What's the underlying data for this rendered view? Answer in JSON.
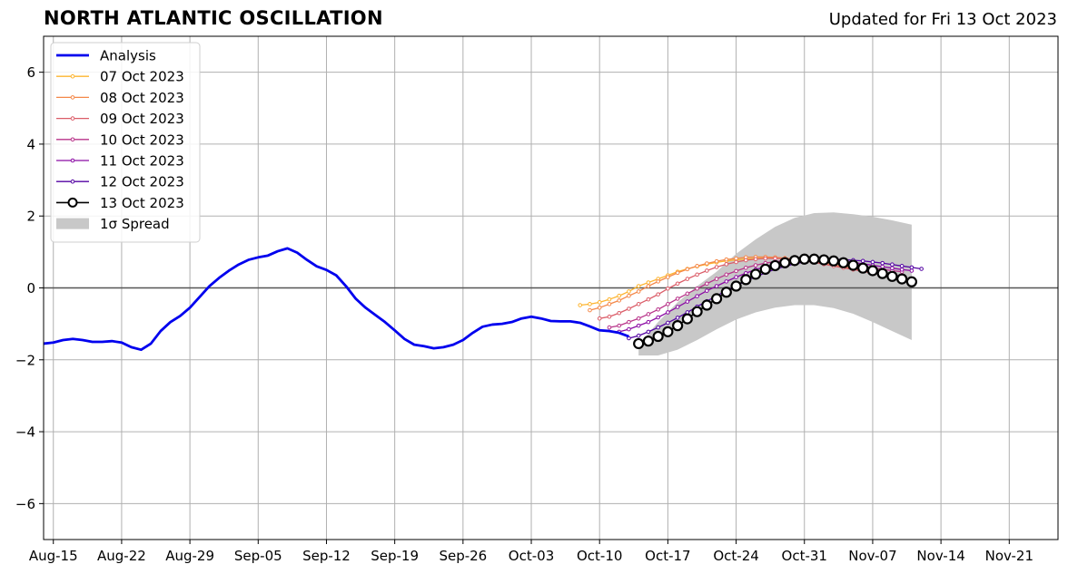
{
  "chart_data": {
    "type": "line",
    "title": "NORTH ATLANTIC OSCILLATION",
    "subtitle": "Updated for Fri 13 Oct 2023",
    "xlabel": "",
    "ylabel": "",
    "x_axis": {
      "type": "date",
      "range": [
        "2023-08-14",
        "2023-11-26"
      ],
      "tick_labels": [
        "Aug-15",
        "Aug-22",
        "Aug-29",
        "Sep-05",
        "Sep-12",
        "Sep-19",
        "Sep-26",
        "Oct-03",
        "Oct-10",
        "Oct-17",
        "Oct-24",
        "Oct-31",
        "Nov-07",
        "Nov-14",
        "Nov-21"
      ],
      "tick_dates": [
        "2023-08-15",
        "2023-08-22",
        "2023-08-29",
        "2023-09-05",
        "2023-09-12",
        "2023-09-19",
        "2023-09-26",
        "2023-10-03",
        "2023-10-10",
        "2023-10-17",
        "2023-10-24",
        "2023-10-31",
        "2023-11-07",
        "2023-11-14",
        "2023-11-21"
      ]
    },
    "y_axis": {
      "range": [
        -7,
        7
      ],
      "ticks": [
        -6,
        -4,
        -2,
        0,
        2,
        4,
        6
      ],
      "tick_labels": [
        "−6",
        "−4",
        "−2",
        "0",
        "2",
        "4",
        "6"
      ]
    },
    "grid": true,
    "zero_line": true,
    "legend_position": "top-left",
    "legend": [
      {
        "label": "Analysis",
        "color": "#0000ee",
        "style": "line"
      },
      {
        "label": "07 Oct 2023",
        "color": "#fdb42f",
        "style": "line-dots"
      },
      {
        "label": "08 Oct 2023",
        "color": "#f48849",
        "style": "line-dots"
      },
      {
        "label": "09 Oct 2023",
        "color": "#db5c68",
        "style": "line-dots"
      },
      {
        "label": "10 Oct 2023",
        "color": "#b83289",
        "style": "line-dots"
      },
      {
        "label": "11 Oct 2023",
        "color": "#8b0aa5",
        "style": "line-dots"
      },
      {
        "label": "12 Oct 2023",
        "color": "#5302a3",
        "style": "line-dots"
      },
      {
        "label": "13 Oct 2023",
        "color": "#000000",
        "style": "line-circles"
      },
      {
        "label": "1σ Spread",
        "color": "#c8c8c8",
        "style": "patch"
      }
    ],
    "analysis": {
      "name": "Analysis",
      "color": "#0000ee",
      "x": [
        "2023-08-14",
        "2023-08-15",
        "2023-08-16",
        "2023-08-17",
        "2023-08-18",
        "2023-08-19",
        "2023-08-20",
        "2023-08-21",
        "2023-08-22",
        "2023-08-23",
        "2023-08-24",
        "2023-08-25",
        "2023-08-26",
        "2023-08-27",
        "2023-08-28",
        "2023-08-29",
        "2023-08-30",
        "2023-08-31",
        "2023-09-01",
        "2023-09-02",
        "2023-09-03",
        "2023-09-04",
        "2023-09-05",
        "2023-09-06",
        "2023-09-07",
        "2023-09-08",
        "2023-09-09",
        "2023-09-10",
        "2023-09-11",
        "2023-09-12",
        "2023-09-13",
        "2023-09-14",
        "2023-09-15",
        "2023-09-16",
        "2023-09-17",
        "2023-09-18",
        "2023-09-19",
        "2023-09-20",
        "2023-09-21",
        "2023-09-22",
        "2023-09-23",
        "2023-09-24",
        "2023-09-25",
        "2023-09-26",
        "2023-09-27",
        "2023-09-28",
        "2023-09-29",
        "2023-09-30",
        "2023-10-01",
        "2023-10-02",
        "2023-10-03",
        "2023-10-04",
        "2023-10-05",
        "2023-10-06",
        "2023-10-07",
        "2023-10-08",
        "2023-10-09",
        "2023-10-10",
        "2023-10-11",
        "2023-10-12",
        "2023-10-13"
      ],
      "y": [
        -1.55,
        -1.52,
        -1.45,
        -1.42,
        -1.45,
        -1.5,
        -1.5,
        -1.48,
        -1.52,
        -1.65,
        -1.72,
        -1.55,
        -1.2,
        -0.95,
        -0.78,
        -0.55,
        -0.25,
        0.05,
        0.28,
        0.48,
        0.65,
        0.78,
        0.85,
        0.9,
        1.02,
        1.1,
        0.98,
        0.78,
        0.6,
        0.5,
        0.35,
        0.05,
        -0.3,
        -0.55,
        -0.75,
        -0.95,
        -1.18,
        -1.42,
        -1.58,
        -1.62,
        -1.68,
        -1.65,
        -1.58,
        -1.45,
        -1.25,
        -1.08,
        -1.02,
        -1.0,
        -0.95,
        -0.85,
        -0.8,
        -0.85,
        -0.92,
        -0.93,
        -0.93,
        -0.97,
        -1.07,
        -1.18,
        -1.2,
        -1.25,
        -1.35
      ]
    },
    "forecasts": [
      {
        "name": "07 Oct 2023",
        "color": "#fdb42f",
        "start": "2023-10-08",
        "values": [
          -0.48,
          -0.45,
          -0.4,
          -0.32,
          -0.22,
          -0.1,
          0.05,
          0.15,
          0.25,
          0.35,
          0.45,
          0.53,
          0.6,
          0.66,
          0.71,
          0.75,
          0.78,
          0.8,
          0.82,
          0.83,
          0.83,
          0.82,
          0.8,
          0.78,
          0.75,
          0.72,
          0.69,
          0.65,
          0.61,
          0.57,
          0.52
        ]
      },
      {
        "name": "08 Oct 2023",
        "color": "#f48849",
        "start": "2023-10-09",
        "values": [
          -0.62,
          -0.55,
          -0.45,
          -0.35,
          -0.22,
          -0.1,
          0.05,
          0.18,
          0.3,
          0.42,
          0.52,
          0.61,
          0.68,
          0.74,
          0.79,
          0.82,
          0.85,
          0.86,
          0.86,
          0.85,
          0.83,
          0.8,
          0.77,
          0.73,
          0.69,
          0.64,
          0.59,
          0.54,
          0.49,
          0.45,
          0.42
        ]
      },
      {
        "name": "09 Oct 2023",
        "color": "#db5c68",
        "start": "2023-10-10",
        "values": [
          -0.85,
          -0.8,
          -0.7,
          -0.58,
          -0.45,
          -0.32,
          -0.18,
          -0.02,
          0.12,
          0.25,
          0.37,
          0.48,
          0.58,
          0.66,
          0.72,
          0.77,
          0.8,
          0.82,
          0.82,
          0.81,
          0.78,
          0.75,
          0.71,
          0.66,
          0.61,
          0.56,
          0.51,
          0.46,
          0.41,
          0.37,
          0.33
        ]
      },
      {
        "name": "10 Oct 2023",
        "color": "#b83289",
        "start": "2023-10-11",
        "values": [
          -1.1,
          -1.05,
          -0.95,
          -0.85,
          -0.73,
          -0.6,
          -0.45,
          -0.3,
          -0.16,
          -0.02,
          0.12,
          0.25,
          0.37,
          0.47,
          0.56,
          0.63,
          0.69,
          0.73,
          0.76,
          0.78,
          0.78,
          0.77,
          0.75,
          0.72,
          0.68,
          0.64,
          0.6,
          0.56,
          0.52,
          0.48,
          0.45
        ]
      },
      {
        "name": "11 Oct 2023",
        "color": "#8b0aa5",
        "start": "2023-10-12",
        "values": [
          -1.22,
          -1.15,
          -1.05,
          -0.95,
          -0.82,
          -0.68,
          -0.53,
          -0.38,
          -0.23,
          -0.08,
          0.05,
          0.18,
          0.3,
          0.41,
          0.51,
          0.59,
          0.66,
          0.71,
          0.75,
          0.77,
          0.78,
          0.78,
          0.76,
          0.74,
          0.71,
          0.67,
          0.63,
          0.59,
          0.55,
          0.51,
          0.48
        ]
      },
      {
        "name": "12 Oct 2023",
        "color": "#5302a3",
        "start": "2023-10-13",
        "values": [
          -1.4,
          -1.33,
          -1.22,
          -1.1,
          -0.97,
          -0.83,
          -0.68,
          -0.52,
          -0.37,
          -0.22,
          -0.08,
          0.06,
          0.19,
          0.31,
          0.42,
          0.52,
          0.6,
          0.67,
          0.72,
          0.76,
          0.78,
          0.79,
          0.79,
          0.77,
          0.75,
          0.72,
          0.69,
          0.65,
          0.61,
          0.57,
          0.53
        ]
      },
      {
        "name": "13 Oct 2023",
        "color": "#000000",
        "start": "2023-10-14",
        "values": [
          -1.55,
          -1.48,
          -1.35,
          -1.22,
          -1.05,
          -0.86,
          -0.66,
          -0.48,
          -0.3,
          -0.12,
          0.05,
          0.23,
          0.38,
          0.52,
          0.62,
          0.7,
          0.76,
          0.8,
          0.8,
          0.78,
          0.75,
          0.7,
          0.63,
          0.55,
          0.48,
          0.4,
          0.32,
          0.25,
          0.17
        ]
      }
    ],
    "spread": {
      "name": "1σ Spread",
      "color": "#c8c8c8",
      "x": [
        "2023-10-14",
        "2023-10-16",
        "2023-10-18",
        "2023-10-20",
        "2023-10-22",
        "2023-10-24",
        "2023-10-26",
        "2023-10-28",
        "2023-10-30",
        "2023-11-01",
        "2023-11-03",
        "2023-11-05",
        "2023-11-07",
        "2023-11-09",
        "2023-11-11"
      ],
      "upper": [
        -1.6,
        -0.95,
        -0.4,
        0.05,
        0.45,
        0.95,
        1.35,
        1.7,
        1.95,
        2.08,
        2.1,
        2.05,
        1.98,
        1.88,
        1.76
      ],
      "lower": [
        -1.88,
        -1.88,
        -1.72,
        -1.45,
        -1.15,
        -0.88,
        -0.68,
        -0.55,
        -0.48,
        -0.48,
        -0.56,
        -0.72,
        -0.95,
        -1.2,
        -1.45
      ]
    }
  }
}
